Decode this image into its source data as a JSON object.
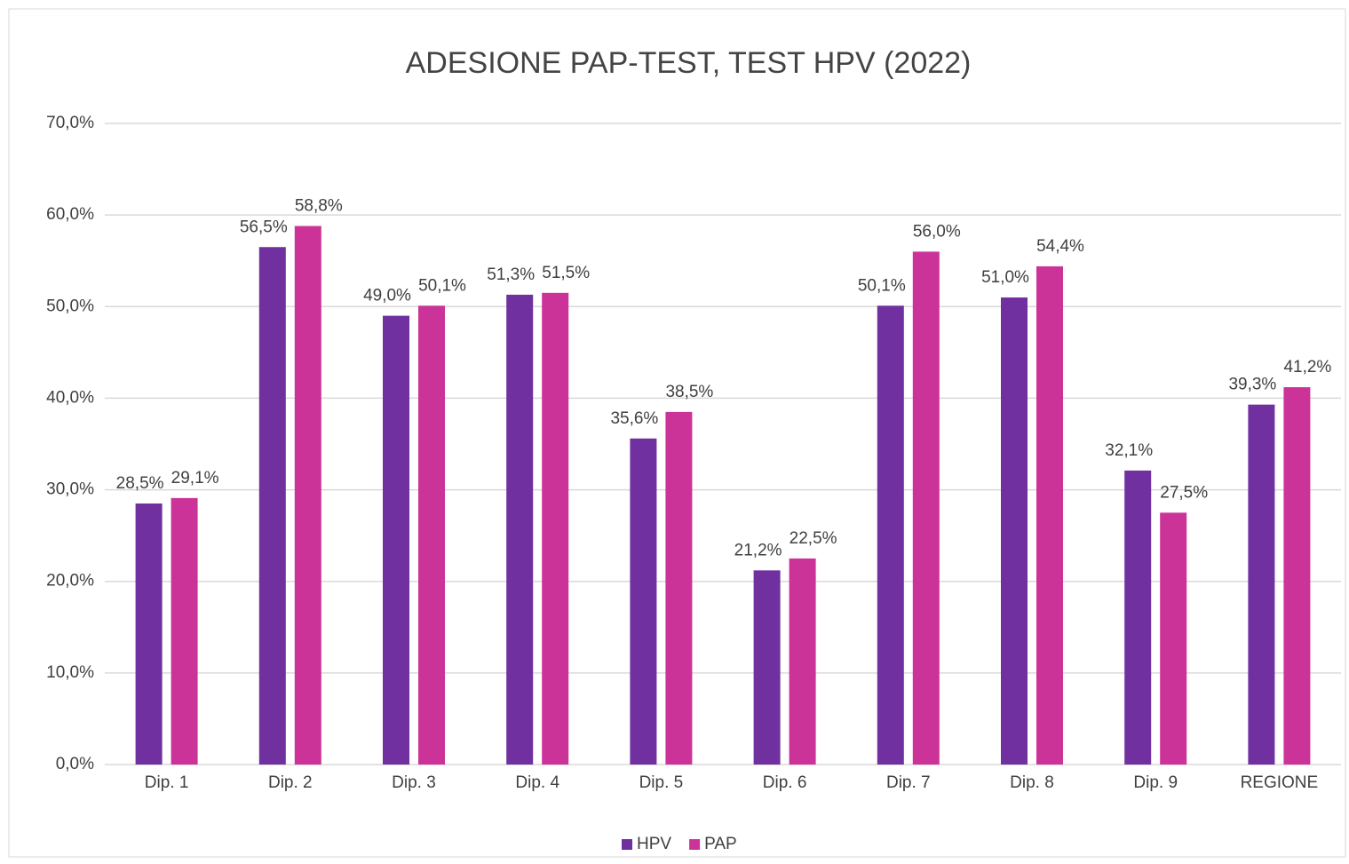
{
  "chart_data": {
    "type": "bar",
    "title": "ADESIONE PAP-TEST, TEST HPV (2022)",
    "categories": [
      "Dip. 1",
      "Dip. 2",
      "Dip. 3",
      "Dip. 4",
      "Dip. 5",
      "Dip. 6",
      "Dip. 7",
      "Dip. 8",
      "Dip. 9",
      "REGIONE"
    ],
    "series": [
      {
        "name": "HPV",
        "color": "#7030a0",
        "values": [
          28.5,
          56.5,
          49.0,
          51.3,
          35.6,
          21.2,
          50.1,
          51.0,
          32.1,
          39.3
        ],
        "value_labels": [
          "28,5%",
          "56,5%",
          "49,0%",
          "51,3%",
          "35,6%",
          "21,2%",
          "50,1%",
          "51,0%",
          "32,1%",
          "39,3%"
        ]
      },
      {
        "name": "PAP",
        "color": "#cc3399",
        "values": [
          29.1,
          58.8,
          50.1,
          51.5,
          38.5,
          22.5,
          56.0,
          54.4,
          27.5,
          41.2
        ],
        "value_labels": [
          "29,1%",
          "58,8%",
          "50,1%",
          "51,5%",
          "38,5%",
          "22,5%",
          "56,0%",
          "54,4%",
          "27,5%",
          "41,2%"
        ]
      }
    ],
    "ylim": [
      0,
      70
    ],
    "yticks": [
      {
        "value": 0,
        "label": "0,0%"
      },
      {
        "value": 10,
        "label": "10,0%"
      },
      {
        "value": 20,
        "label": "20,0%"
      },
      {
        "value": 30,
        "label": "30,0%"
      },
      {
        "value": 40,
        "label": "40,0%"
      },
      {
        "value": 50,
        "label": "50,0%"
      },
      {
        "value": 60,
        "label": "60,0%"
      },
      {
        "value": 70,
        "label": "70,0%"
      }
    ],
    "grid": true,
    "legend": "bottom"
  }
}
